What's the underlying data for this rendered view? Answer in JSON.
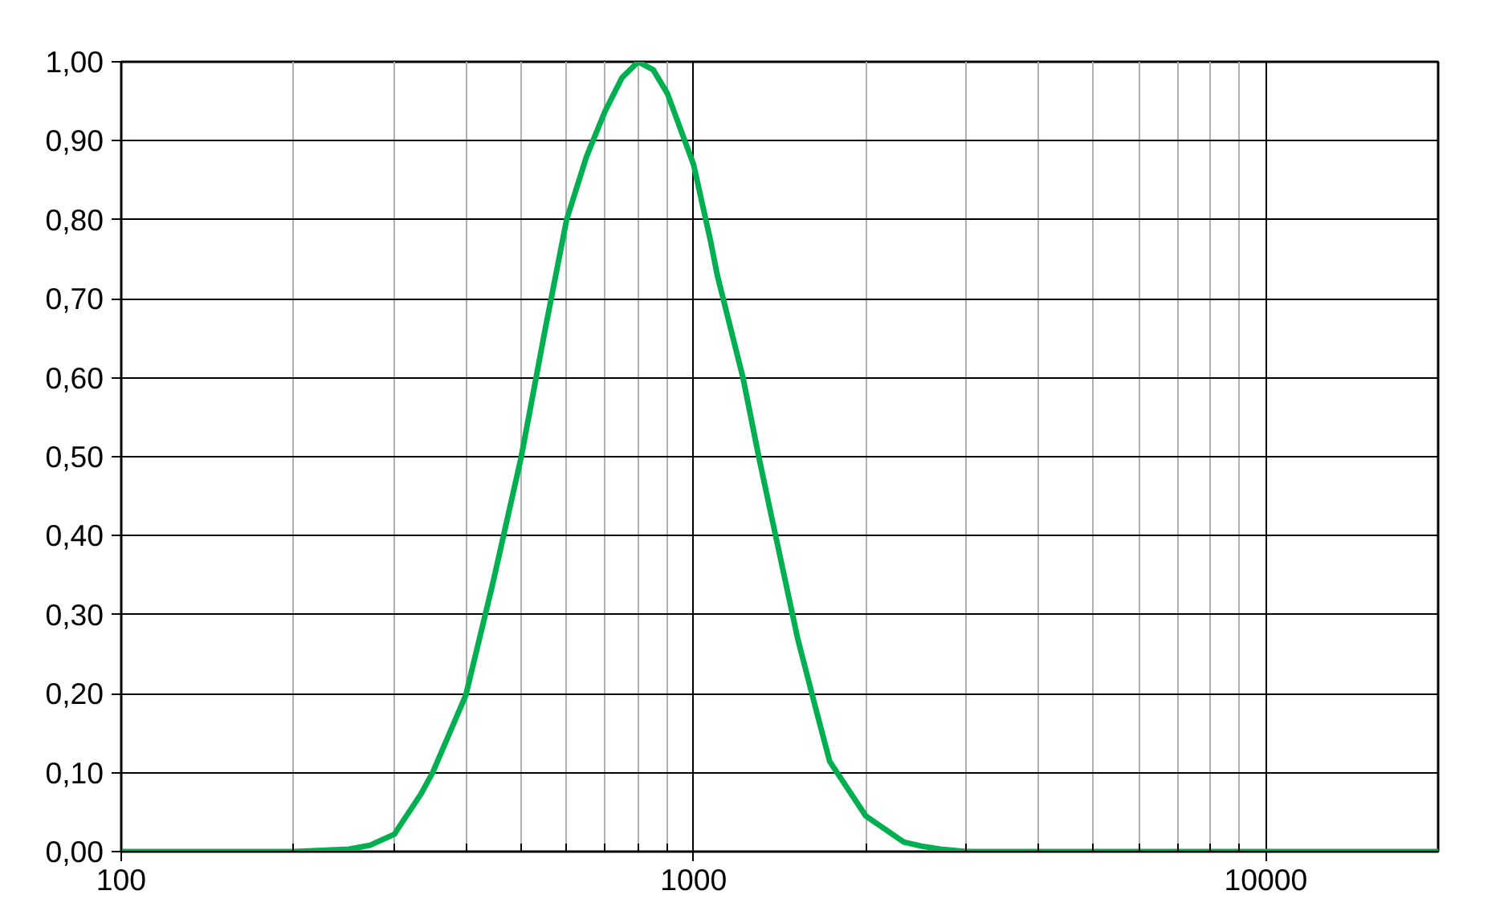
{
  "chart_data": {
    "type": "line",
    "log": "x",
    "grid": true,
    "marker": "none",
    "line_style": "solid",
    "x": [
      100,
      150,
      200,
      250,
      272,
      300,
      334,
      350,
      400,
      446,
      500,
      550,
      600,
      650,
      700,
      750,
      800,
      850,
      900,
      1000,
      1073,
      1100,
      1220,
      1300,
      1363,
      1520,
      1650,
      1730,
      2000,
      2330,
      2500,
      2700,
      3000,
      5000,
      10000,
      20000
    ],
    "series": [
      {
        "color": "#00b050",
        "values": [
          0,
          0,
          0,
          0.003,
          0.008,
          0.022,
          0.073,
          0.1,
          0.198,
          0.34,
          0.5,
          0.66,
          0.8,
          0.88,
          0.937,
          0.98,
          1.0,
          0.99,
          0.96,
          0.87,
          0.77,
          0.73,
          0.6,
          0.5,
          0.43,
          0.27,
          0.17,
          0.114,
          0.045,
          0.012,
          0.007,
          0.003,
          0,
          0,
          0,
          0
        ]
      }
    ],
    "xlim": [
      100,
      20000
    ],
    "xticks": [
      100,
      1000,
      10000
    ],
    "ylim": [
      0,
      1
    ],
    "yticks": [
      {
        "value": 0,
        "label": "0,00"
      },
      {
        "value": 0.1,
        "label": "0,10"
      },
      {
        "value": 0.2,
        "label": "0,20"
      },
      {
        "value": 0.3,
        "label": "0,30"
      },
      {
        "value": 0.4,
        "label": "0,40"
      },
      {
        "value": 0.5,
        "label": "0,50"
      },
      {
        "value": 0.6,
        "label": "0,60"
      },
      {
        "value": 0.7,
        "label": "0,70"
      },
      {
        "value": 0.8,
        "label": "0,80"
      },
      {
        "value": 0.9,
        "label": "0,90"
      },
      {
        "value": 1,
        "label": "1,00"
      }
    ]
  }
}
